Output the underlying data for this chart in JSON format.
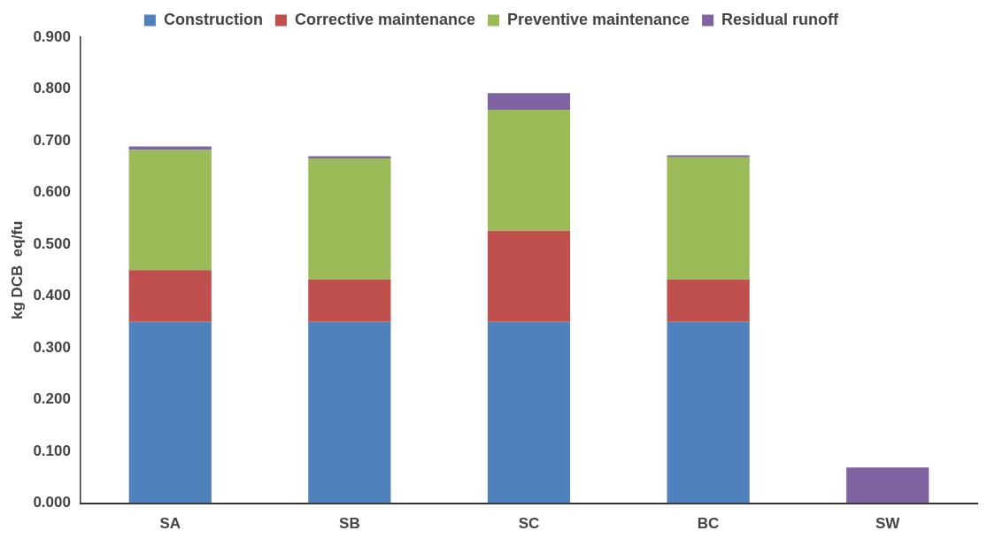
{
  "chart_data": {
    "type": "bar",
    "stacked": true,
    "ylabel": "kg DCB  eq/fu",
    "categories": [
      "SA",
      "SB",
      "SC",
      "BC",
      "SW"
    ],
    "series": [
      {
        "name": "Construction",
        "color": "#4f81bd",
        "values": [
          0.35,
          0.35,
          0.35,
          0.35,
          null
        ]
      },
      {
        "name": "Corrective maintenance",
        "color": "#c0504d",
        "values": [
          0.1,
          0.082,
          0.176,
          0.082,
          null
        ]
      },
      {
        "name": "Preventive maintenance",
        "color": "#9bbb59",
        "values": [
          0.232,
          0.234,
          0.234,
          0.236,
          null
        ]
      },
      {
        "name": "Residual runoff",
        "color": "#8064a2",
        "values": [
          0.007,
          0.004,
          0.032,
          0.004,
          0.069
        ]
      }
    ],
    "ylim": [
      0,
      0.9
    ],
    "yticks": [
      {
        "value": 0,
        "label": "0.000"
      },
      {
        "value": 0.1,
        "label": "0.100"
      },
      {
        "value": 0.2,
        "label": "0.200"
      },
      {
        "value": 0.3,
        "label": "0.300"
      },
      {
        "value": 0.4,
        "label": "0.400"
      },
      {
        "value": 0.5,
        "label": "0.500"
      },
      {
        "value": 0.6,
        "label": "0.600"
      },
      {
        "value": 0.7,
        "label": "0.700"
      },
      {
        "value": 0.8,
        "label": "0.800"
      },
      {
        "value": 0.9,
        "label": "0.900"
      }
    ],
    "grid": false,
    "legend": "top"
  }
}
